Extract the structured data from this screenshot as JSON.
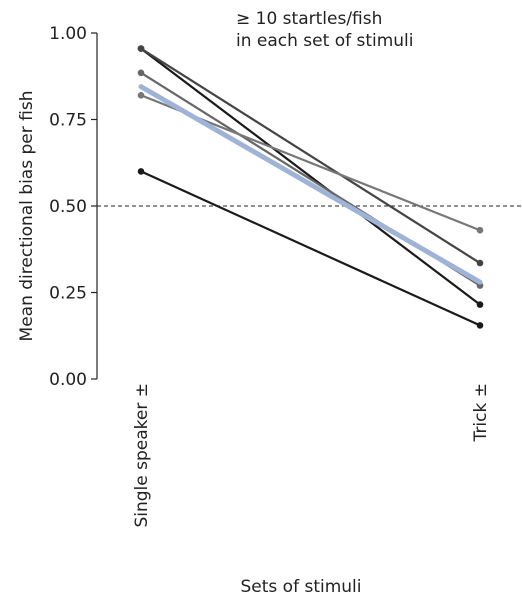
{
  "chart_data": {
    "type": "line",
    "title": "",
    "xlabel": "Sets of stimuli",
    "ylabel": "Mean directional bias per fish",
    "categories": [
      "Single speaker ±",
      "Trick ±"
    ],
    "ylim": [
      0,
      1
    ],
    "yticks": [
      "0.00",
      "0.25",
      "0.50",
      "0.75",
      "1.00"
    ],
    "reference_line": {
      "y": 0.5,
      "style": "dashed"
    },
    "annotation": [
      "≥ 10 startles/fish",
      "in each set of stimuli"
    ],
    "grid": false,
    "series": [
      {
        "values": [
          0.955,
          0.215
        ],
        "color": "#1a1a1a"
      },
      {
        "values": [
          0.955,
          0.335
        ],
        "color": "#444444"
      },
      {
        "values": [
          0.885,
          0.27
        ],
        "color": "#666666"
      },
      {
        "values": [
          0.82,
          0.43
        ],
        "color": "#777777"
      },
      {
        "values": [
          0.6,
          0.155
        ],
        "color": "#1a1a1a"
      },
      {
        "values": [
          0.845,
          0.28
        ],
        "color": "#9fb3d6",
        "mean": true
      }
    ]
  }
}
